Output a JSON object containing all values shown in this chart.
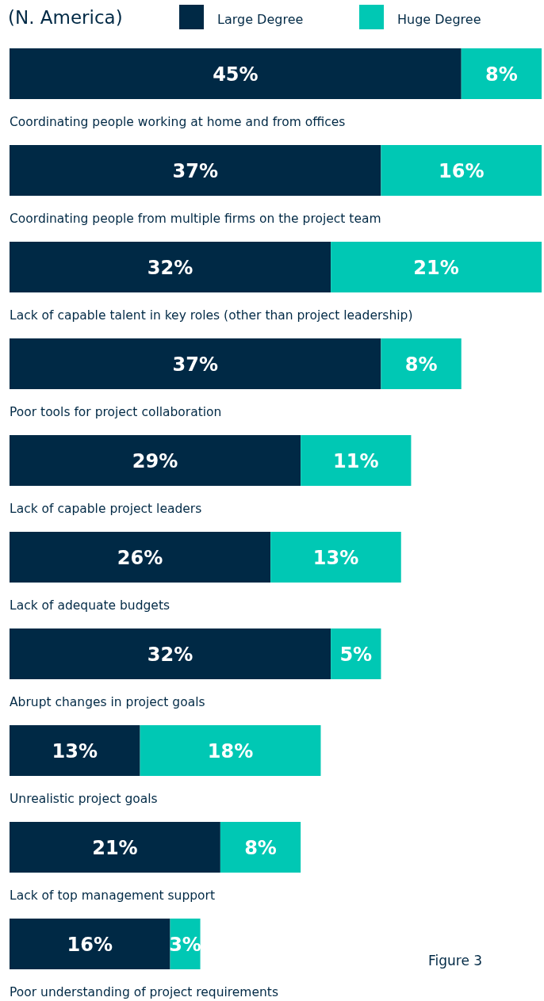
{
  "chart_data": {
    "type": "bar",
    "orientation": "horizontal",
    "stacked": true,
    "title": "(N. America)",
    "categories": [
      "Coordinating people working at home and from offices",
      "Coordinating people from multiple firms on the project team",
      "Lack of capable talent in key roles (other than project leadership)",
      "Poor tools for project collaboration",
      "Lack of capable project leaders",
      "Lack of adequate budgets",
      "Abrupt changes in project goals",
      "Unrealistic project goals",
      "Lack of top management support",
      "Poor understanding of project requirements"
    ],
    "series": [
      {
        "name": "Large Degree",
        "color": "#002945",
        "values": [
          45,
          37,
          32,
          37,
          29,
          26,
          32,
          13,
          21,
          16
        ],
        "value_labels": [
          "45%",
          "37%",
          "32%",
          "37%",
          "29%",
          "26%",
          "32%",
          "13%",
          "21%",
          "16%"
        ]
      },
      {
        "name": "Huge Degree",
        "color": "#00c8b4",
        "values": [
          8,
          16,
          21,
          8,
          11,
          13,
          5,
          18,
          8,
          3
        ],
        "value_labels": [
          "8%",
          "16%",
          "21%",
          "8%",
          "11%",
          "13%",
          "5%",
          "18%",
          "8%",
          "3%"
        ]
      }
    ],
    "legend": "top",
    "annotations": [
      "Figure 3"
    ]
  }
}
